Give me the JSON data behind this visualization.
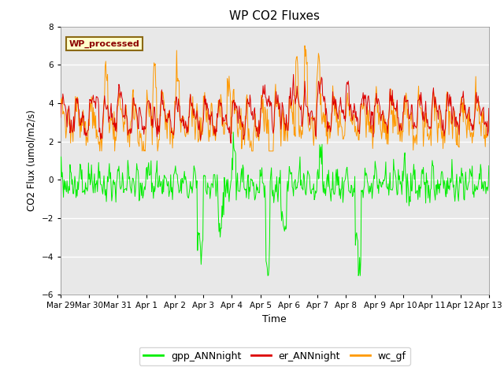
{
  "title": "WP CO2 Fluxes",
  "xlabel": "Time",
  "ylabel_text": "CO2 Flux (umol/m2/s)",
  "ylim": [
    -6,
    8
  ],
  "yticks": [
    -6,
    -4,
    -2,
    0,
    2,
    4,
    6,
    8
  ],
  "color_gpp": "#00ee00",
  "color_er": "#dd0000",
  "color_wc": "#ff9900",
  "bg_color": "#e8e8e8",
  "grid_color": "white",
  "annotation_text": "WP_processed",
  "annotation_color": "#8b0000",
  "annotation_bg": "#ffffcc",
  "annotation_border": "#8b6914",
  "legend_labels": [
    "gpp_ANNnight",
    "er_ANNnight",
    "wc_gf"
  ],
  "xtick_positions": [
    0,
    1,
    2,
    3,
    4,
    5,
    6,
    7,
    8,
    9,
    10,
    11,
    12,
    13,
    14,
    15
  ],
  "xtick_labels": [
    "Mar 29",
    "Mar 30",
    "Mar 31",
    "Apr 1",
    "Apr 2",
    "Apr 3",
    "Apr 4",
    "Apr 5",
    "Apr 6",
    "Apr 7",
    "Apr 8",
    "Apr 9",
    "Apr 10",
    "Apr 11",
    "Apr 12",
    "Apr 13"
  ]
}
